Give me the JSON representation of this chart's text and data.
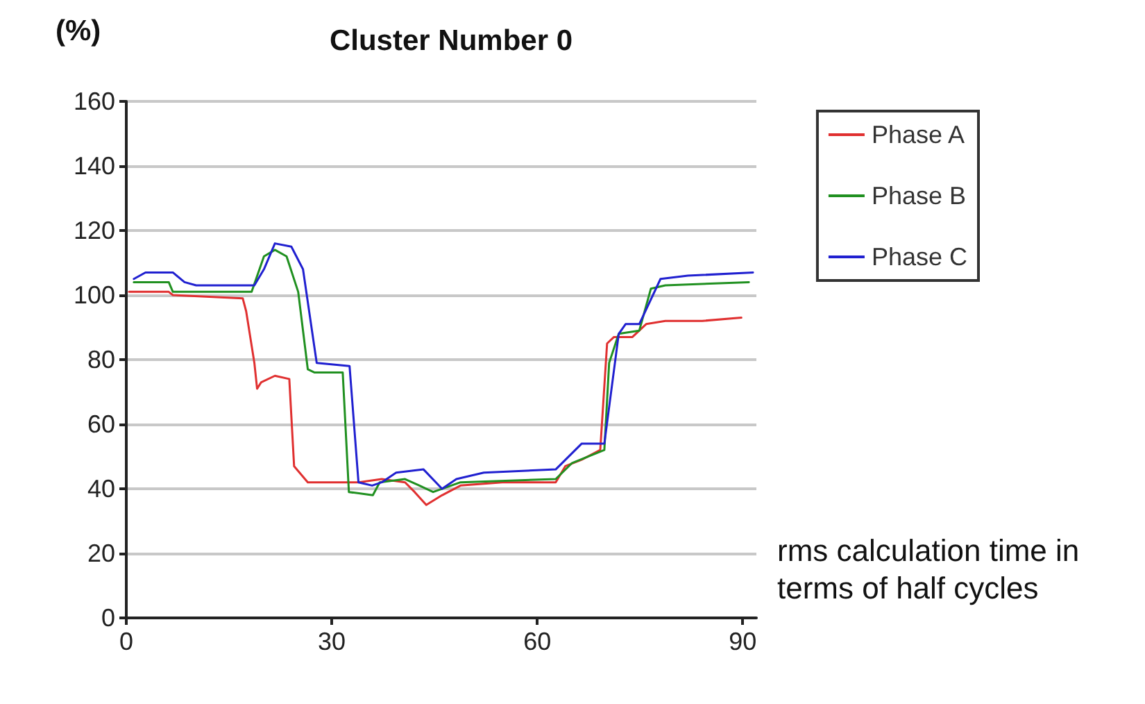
{
  "chart_data": {
    "type": "line",
    "title": "Cluster Number 0",
    "ylabel": "(%)",
    "xlabel": "rms calculation time in terms of half cycles",
    "xlim": [
      0,
      92
    ],
    "xticks": [
      0,
      30,
      60,
      90
    ],
    "ylim": [
      0,
      160
    ],
    "yticks": [
      0,
      20,
      40,
      60,
      80,
      100,
      120,
      140,
      160
    ],
    "grid": "y",
    "legend": "right",
    "marker": "none",
    "line_style": "solid",
    "series": [
      {
        "name": "Phase A",
        "color": "#e03030",
        "x": [
          0.4,
          6.2,
          6.8,
          17,
          17.5,
          18.7,
          19.1,
          19.7,
          21.7,
          23.8,
          24.5,
          26.5,
          31.9,
          33.9,
          37.3,
          40.7,
          42.1,
          43.8,
          46.1,
          48.8,
          54.9,
          62.7,
          64.1,
          66.5,
          69.2,
          70.2,
          71.2,
          73.9,
          75.9,
          78.7,
          84.1,
          89.8
        ],
        "values": [
          101,
          101,
          100,
          99,
          95,
          79,
          71,
          73,
          75,
          74,
          47,
          42,
          42,
          42,
          43,
          42,
          39,
          35,
          38,
          41,
          42,
          42,
          47,
          49,
          52,
          85,
          87,
          87,
          91,
          92,
          92,
          93
        ]
      },
      {
        "name": "Phase B",
        "color": "#209020",
        "x": [
          1.1,
          6.2,
          6.8,
          18.3,
          20.1,
          21.7,
          23.4,
          25.1,
          26.5,
          27.5,
          31.6,
          32.5,
          36,
          37,
          40.7,
          42.8,
          44.8,
          48.8,
          62.7,
          65.1,
          69.8,
          70.5,
          71.9,
          74.9,
          76.6,
          78.7,
          90.9
        ],
        "values": [
          104,
          104,
          101,
          101,
          112,
          114,
          112,
          101,
          77,
          76,
          76,
          39,
          38,
          42,
          43,
          41,
          39,
          42,
          43,
          48,
          52,
          79,
          88,
          89,
          102,
          103,
          104
        ]
      },
      {
        "name": "Phase C",
        "color": "#2020d0",
        "x": [
          1.1,
          2.8,
          6.8,
          8.5,
          10.2,
          18.7,
          20.1,
          21.7,
          24.1,
          25.8,
          27.8,
          32.6,
          33.9,
          35.9,
          37.3,
          39.4,
          43.4,
          46.1,
          48.2,
          52.2,
          62.7,
          66.5,
          69.8,
          71.9,
          72.9,
          74.9,
          78,
          82,
          91.5
        ],
        "values": [
          105,
          107,
          107,
          104,
          103,
          103,
          108,
          116,
          115,
          108,
          79,
          78,
          42,
          41,
          42,
          45,
          46,
          40,
          43,
          45,
          46,
          54,
          54,
          88,
          91,
          91,
          105,
          106,
          107
        ]
      }
    ]
  }
}
